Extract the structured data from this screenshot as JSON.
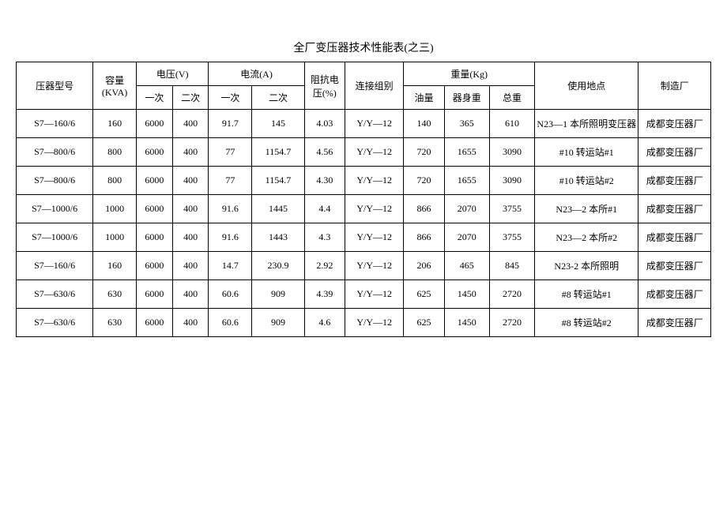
{
  "title": "全厂变压器技术性能表(之三)",
  "headers": {
    "model": "压器型号",
    "capacity": "容量\n(KVA)",
    "voltage": "电压(V)",
    "voltage_primary": "一次",
    "voltage_secondary": "二次",
    "current": "电流(A)",
    "current_primary": "一次",
    "current_secondary": "二次",
    "impedance": "阻抗电压(%)",
    "connection": "连接组别",
    "weight": "重量(Kg)",
    "weight_oil": "油量",
    "weight_body": "器身重",
    "weight_total": "总重",
    "location": "使用地点",
    "manufacturer": "制造厂"
  },
  "rows": [
    {
      "model": "S7—160/6",
      "capacity": "160",
      "v1": "6000",
      "v2": "400",
      "a1": "91.7",
      "a2": "145",
      "imp": "4.03",
      "conn": "Y/Y—12",
      "w1": "140",
      "w2": "365",
      "w3": "610",
      "loc": "N23—1 本所照明变压器",
      "mfr": "成都变压器厂"
    },
    {
      "model": "S7—800/6",
      "capacity": "800",
      "v1": "6000",
      "v2": "400",
      "a1": "77",
      "a2": "1154.7",
      "imp": "4.56",
      "conn": "Y/Y—12",
      "w1": "720",
      "w2": "1655",
      "w3": "3090",
      "loc": "#10 转运站#1",
      "mfr": "成都变压器厂"
    },
    {
      "model": "S7—800/6",
      "capacity": "800",
      "v1": "6000",
      "v2": "400",
      "a1": "77",
      "a2": "1154.7",
      "imp": "4.30",
      "conn": "Y/Y—12",
      "w1": "720",
      "w2": "1655",
      "w3": "3090",
      "loc": "#10 转运站#2",
      "mfr": "成都变压器厂"
    },
    {
      "model": "S7—1000/6",
      "capacity": "1000",
      "v1": "6000",
      "v2": "400",
      "a1": "91.6",
      "a2": "1445",
      "imp": "4.4",
      "conn": "Y/Y—12",
      "w1": "866",
      "w2": "2070",
      "w3": "3755",
      "loc": "N23—2 本所#1",
      "mfr": "成都变压器厂"
    },
    {
      "model": "S7—1000/6",
      "capacity": "1000",
      "v1": "6000",
      "v2": "400",
      "a1": "91.6",
      "a2": "1443",
      "imp": "4.3",
      "conn": "Y/Y—12",
      "w1": "866",
      "w2": "2070",
      "w3": "3755",
      "loc": "N23—2 本所#2",
      "mfr": "成都变压器厂"
    },
    {
      "model": "S7—160/6",
      "capacity": "160",
      "v1": "6000",
      "v2": "400",
      "a1": "14.7",
      "a2": "230.9",
      "imp": "2.92",
      "conn": "Y/Y—12",
      "w1": "206",
      "w2": "465",
      "w3": "845",
      "loc": "N23-2 本所照明",
      "mfr": "成都变压器厂"
    },
    {
      "model": "S7—630/6",
      "capacity": "630",
      "v1": "6000",
      "v2": "400",
      "a1": "60.6",
      "a2": "909",
      "imp": "4.39",
      "conn": "Y/Y—12",
      "w1": "625",
      "w2": "1450",
      "w3": "2720",
      "loc": "#8 转运站#1",
      "mfr": "成都变压器厂"
    },
    {
      "model": "S7—630/6",
      "capacity": "630",
      "v1": "6000",
      "v2": "400",
      "a1": "60.6",
      "a2": "909",
      "imp": "4.6",
      "conn": "Y/Y—12",
      "w1": "625",
      "w2": "1450",
      "w3": "2720",
      "loc": "#8 转运站#2",
      "mfr": "成都变压器厂"
    }
  ]
}
